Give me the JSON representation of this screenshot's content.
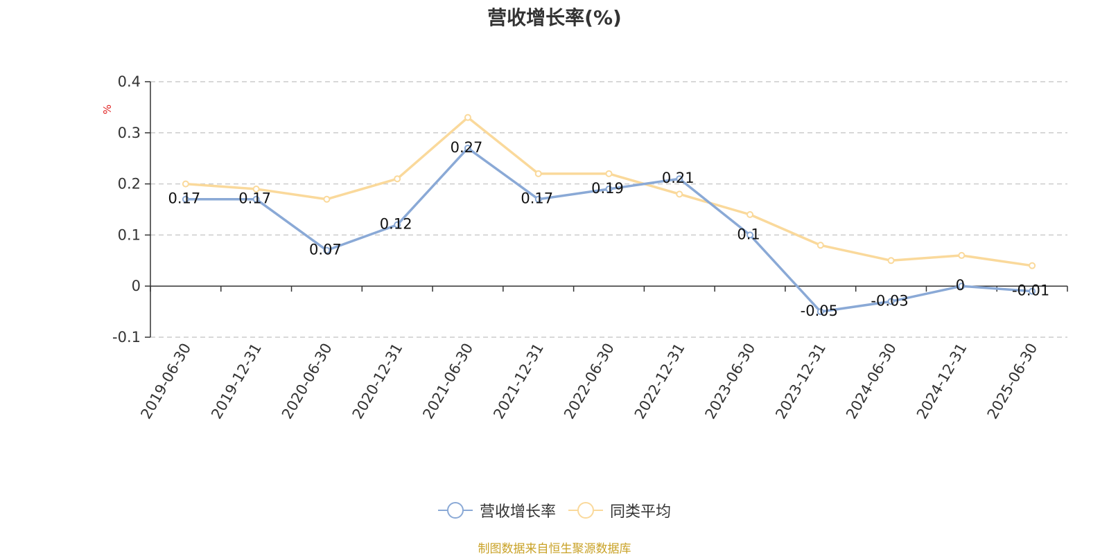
{
  "title": "营收增长率(%)",
  "source_text": "制图数据来自恒生聚源数据库",
  "colors": {
    "series1": "#8aa9d6",
    "series2": "#fad99b",
    "axis": "#333333",
    "grid": "#cccccc",
    "ylabel": "#e02020",
    "source": "#c9a227"
  },
  "chart_data": {
    "type": "line",
    "title": "营收增长率(%)",
    "ylabel": "%",
    "xlabel": "",
    "ylim": [
      -0.1,
      0.4
    ],
    "yticks": [
      -0.1,
      0,
      0.1,
      0.2,
      0.3,
      0.4
    ],
    "grid": true,
    "legend_position": "bottom",
    "categories": [
      "2019-06-30",
      "2019-12-31",
      "2020-06-30",
      "2020-12-31",
      "2021-06-30",
      "2021-12-31",
      "2022-06-30",
      "2022-12-31",
      "2023-06-30",
      "2023-12-31",
      "2024-06-30",
      "2024-12-31",
      "2025-06-30"
    ],
    "series": [
      {
        "name": "营收增长率",
        "values": [
          0.17,
          0.17,
          0.07,
          0.12,
          0.27,
          0.17,
          0.19,
          0.21,
          0.1,
          -0.05,
          -0.03,
          0,
          -0.01
        ],
        "data_labels": true
      },
      {
        "name": "同类平均",
        "values": [
          0.2,
          0.19,
          0.17,
          0.21,
          0.33,
          0.22,
          0.22,
          0.18,
          0.14,
          0.08,
          0.05,
          0.06,
          0.04
        ],
        "data_labels": false
      }
    ]
  }
}
